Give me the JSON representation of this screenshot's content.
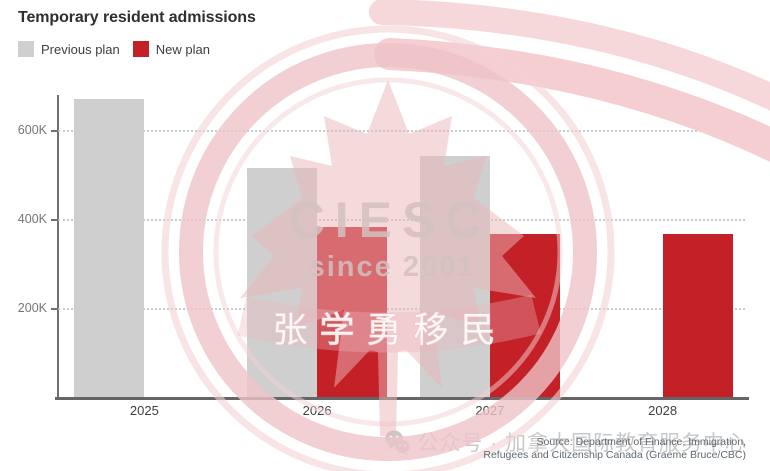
{
  "chart_data": {
    "type": "bar",
    "title": "Temporary resident admissions",
    "categories": [
      "2025",
      "2026",
      "2027",
      "2028"
    ],
    "series": [
      {
        "name": "Previous plan",
        "color": "#cfcfcf",
        "values": [
          673650,
          516600,
          543600,
          null
        ]
      },
      {
        "name": "New plan",
        "color": "#c32127",
        "values": [
          null,
          385000,
          370000,
          370000
        ]
      }
    ],
    "xlabel": "",
    "ylabel": "",
    "ylim": [
      0,
      682000
    ],
    "yticks": [
      {
        "value": 200000,
        "label": "200K"
      },
      {
        "value": 400000,
        "label": "400K"
      },
      {
        "value": 600000,
        "label": "600K"
      }
    ],
    "grid": "horizontal-dotted",
    "legend_position": "top-left"
  },
  "watermark": {
    "acronym": "CIESC",
    "subtitle": "since 2001",
    "chinese": "张学勇移民"
  },
  "footer": {
    "wechat_label": "公众号 · 加拿大国际教育服务中心"
  },
  "source": {
    "line1": "Source: Department of Finance, Immigration,",
    "line2": "Refugees and Citizenship Canada (Graeme Bruce/CBC)"
  },
  "colors": {
    "previous_plan": "#cfcfcf",
    "new_plan": "#c32127",
    "axis": "#656565",
    "gridline": "#bac3ca",
    "watermark_pink": "#eec3c7"
  }
}
